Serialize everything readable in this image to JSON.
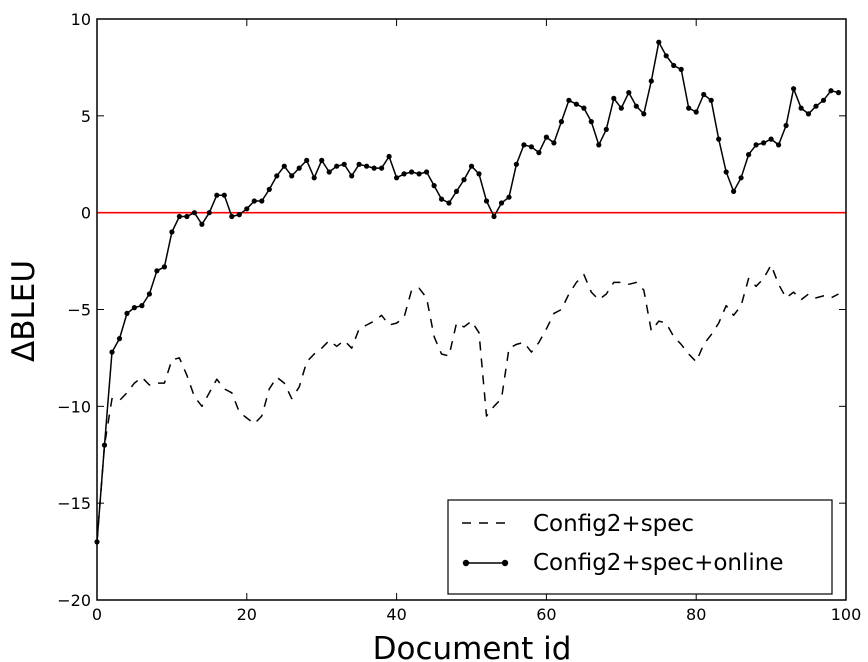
{
  "chart_data": {
    "type": "line",
    "title": "",
    "xlabel": "Document id",
    "ylabel": "ΔBLEU",
    "xlim": [
      0,
      100
    ],
    "ylim": [
      -20,
      10
    ],
    "x_ticks": [
      "0",
      "20",
      "40",
      "60",
      "80",
      "100"
    ],
    "y_ticks": [
      "10",
      "5",
      "0",
      "−5",
      "−10",
      "−15",
      "−20"
    ],
    "grid": false,
    "legend_position": "lower-right",
    "reference_line": {
      "y": 0,
      "color": "#ff0000"
    },
    "x": [
      0,
      1,
      2,
      3,
      4,
      5,
      6,
      7,
      8,
      9,
      10,
      11,
      12,
      13,
      14,
      15,
      16,
      17,
      18,
      19,
      20,
      21,
      22,
      23,
      24,
      25,
      26,
      27,
      28,
      29,
      30,
      31,
      32,
      33,
      34,
      35,
      36,
      37,
      38,
      39,
      40,
      41,
      42,
      43,
      44,
      45,
      46,
      47,
      48,
      49,
      50,
      51,
      52,
      53,
      54,
      55,
      56,
      57,
      58,
      59,
      60,
      61,
      62,
      63,
      64,
      65,
      66,
      67,
      68,
      69,
      70,
      71,
      72,
      73,
      74,
      75,
      76,
      77,
      78,
      79,
      80,
      81,
      82,
      83,
      84,
      85,
      86,
      87,
      88,
      89,
      90,
      91,
      92,
      93,
      94,
      95,
      96,
      97,
      98,
      99
    ],
    "series": [
      {
        "name": "Config2+spec",
        "style": "dashed",
        "color": "#000000",
        "values": [
          -17,
          -12,
          -9.6,
          -9.7,
          -9.3,
          -8.8,
          -8.5,
          -8.9,
          -8.8,
          -8.8,
          -7.6,
          -7.5,
          -8.4,
          -9.5,
          -10,
          -9.3,
          -8.6,
          -9.1,
          -9.3,
          -10.3,
          -10.6,
          -10.9,
          -10.5,
          -9.1,
          -8.5,
          -8.8,
          -9.6,
          -9.0,
          -7.7,
          -7.3,
          -7.0,
          -6.6,
          -6.9,
          -6.6,
          -7.0,
          -6.0,
          -5.8,
          -5.6,
          -5.3,
          -5.8,
          -5.7,
          -5.4,
          -4.0,
          -3.9,
          -4.4,
          -6.4,
          -7.3,
          -7.4,
          -5.7,
          -5.9,
          -5.6,
          -6.2,
          -10.5,
          -10.0,
          -9.6,
          -7.0,
          -6.8,
          -6.7,
          -7.2,
          -6.7,
          -6.0,
          -5.2,
          -5.0,
          -4.2,
          -3.6,
          -3.2,
          -4.1,
          -4.5,
          -4.2,
          -3.6,
          -3.6,
          -3.7,
          -3.6,
          -4.0,
          -6.1,
          -5.6,
          -5.7,
          -6.4,
          -6.8,
          -7.3,
          -7.7,
          -6.8,
          -6.3,
          -5.7,
          -4.8,
          -5.3,
          -4.8,
          -3.4,
          -3.8,
          -3.4,
          -2.7,
          -3.7,
          -4.4,
          -4.1,
          -4.5,
          -4.2,
          -4.4,
          -4.3,
          -4.4,
          -4.2
        ]
      },
      {
        "name": "Config2+spec+online",
        "style": "solid-markers",
        "color": "#000000",
        "values": [
          -17,
          -12,
          -7.2,
          -6.5,
          -5.2,
          -4.9,
          -4.8,
          -4.2,
          -3.0,
          -2.8,
          -1.0,
          -0.2,
          -0.2,
          0.0,
          -0.6,
          0.0,
          0.9,
          0.9,
          -0.2,
          -0.1,
          0.2,
          0.6,
          0.6,
          1.2,
          1.9,
          2.4,
          1.9,
          2.3,
          2.7,
          1.8,
          2.7,
          2.1,
          2.4,
          2.5,
          1.9,
          2.5,
          2.4,
          2.3,
          2.3,
          2.9,
          1.8,
          2.0,
          2.1,
          2.0,
          2.1,
          1.4,
          0.7,
          0.5,
          1.1,
          1.7,
          2.4,
          2.0,
          0.6,
          -0.2,
          0.5,
          0.8,
          2.5,
          3.5,
          3.4,
          3.1,
          3.9,
          3.6,
          4.7,
          5.8,
          5.6,
          5.4,
          4.7,
          3.5,
          4.3,
          5.9,
          5.4,
          6.2,
          5.5,
          5.1,
          6.8,
          8.8,
          8.1,
          7.6,
          7.4,
          5.4,
          5.2,
          6.1,
          5.8,
          3.8,
          2.1,
          1.1,
          1.8,
          3.0,
          3.5,
          3.6,
          3.8,
          3.5,
          4.5,
          6.4,
          5.4,
          5.1,
          5.5,
          5.8,
          6.3,
          6.2
        ]
      }
    ]
  }
}
